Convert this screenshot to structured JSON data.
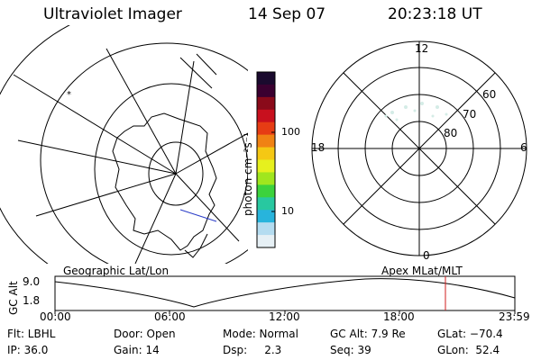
{
  "header": {
    "instrument": "Ultraviolet Imager",
    "date": "14 Sep 07",
    "time": "20:23:18 UT"
  },
  "colorbar": {
    "unit_label": "photon cm⁻²s⁻¹",
    "ticks": [
      "100",
      "10"
    ],
    "colors": [
      "#1a0a2e",
      "#3a0030",
      "#8a0a1a",
      "#c8101e",
      "#e63c14",
      "#f08214",
      "#f5c814",
      "#e6f01e",
      "#a0e61e",
      "#3cd23c",
      "#28c8a0",
      "#28b4dc",
      "#b4dcf0",
      "#e6f0f5"
    ]
  },
  "polar": {
    "mlt_labels": {
      "top": "12",
      "left": "18",
      "right": "6",
      "bottom": "0"
    },
    "lat_labels": [
      "60",
      "70",
      "80"
    ]
  },
  "timeline": {
    "left_label": "Geographic Lat/Lon",
    "right_label": "Apex MLat/MLT",
    "y_axis_label": "GC Alt",
    "y_ticks": [
      "9.0",
      "1.8"
    ],
    "x_ticks": [
      "00:00",
      "06:00",
      "12:00",
      "18:00",
      "23:59"
    ]
  },
  "params": {
    "row1": [
      "Flt: LBHL",
      "Door: Open",
      "Mode: Normal",
      "GC Alt: 7.9 Re",
      "GLat: −70.4"
    ],
    "row2": [
      "IP: 36.0",
      "Gain: 14",
      "Dsp:     2.3",
      "Seq: 39",
      "GLon:  52.4"
    ]
  }
}
